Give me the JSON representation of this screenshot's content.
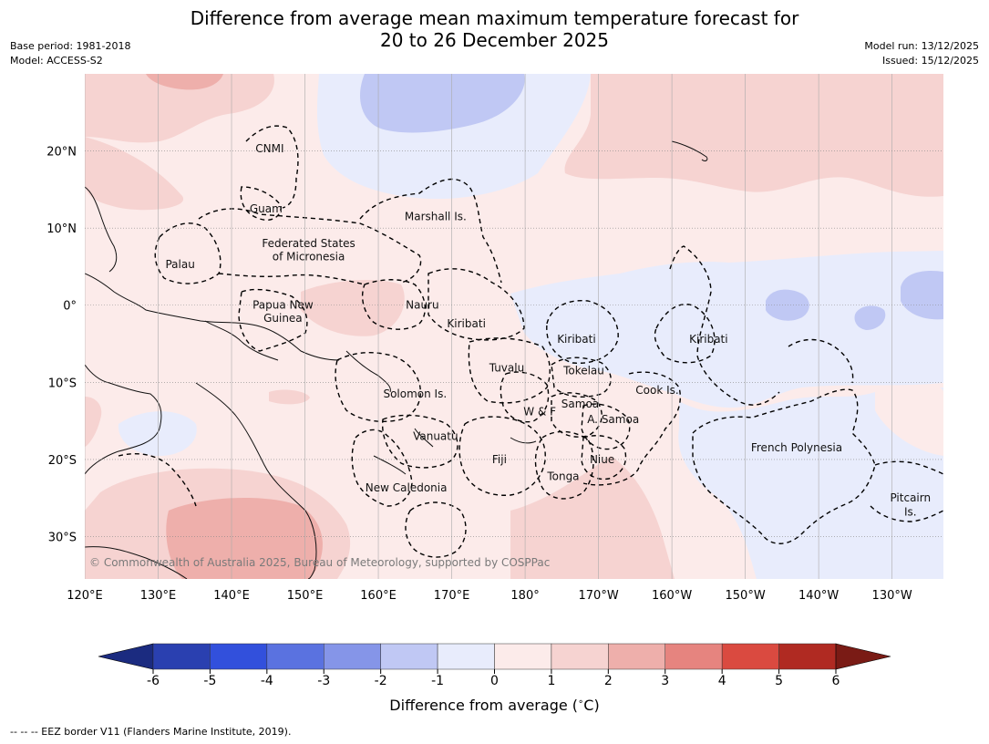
{
  "title": {
    "line1": "Difference from average mean maximum temperature forecast for",
    "line2": "20 to 26 December 2025"
  },
  "meta_left": {
    "base_period": "Base period: 1981-2018",
    "model": "Model: ACCESS-S2"
  },
  "meta_right": {
    "model_run": "Model run: 13/12/2025",
    "issued": "Issued: 15/12/2025"
  },
  "map": {
    "lon_range": [
      120,
      237
    ],
    "lat_range": [
      -35.5,
      30
    ],
    "lon_ticks": [
      {
        "lon": 120,
        "label": "120°E"
      },
      {
        "lon": 130,
        "label": "130°E"
      },
      {
        "lon": 140,
        "label": "140°E"
      },
      {
        "lon": 150,
        "label": "150°E"
      },
      {
        "lon": 160,
        "label": "160°E"
      },
      {
        "lon": 170,
        "label": "170°E"
      },
      {
        "lon": 180,
        "label": "180°"
      },
      {
        "lon": 190,
        "label": "170°W"
      },
      {
        "lon": 200,
        "label": "160°W"
      },
      {
        "lon": 210,
        "label": "150°W"
      },
      {
        "lon": 220,
        "label": "140°W"
      },
      {
        "lon": 230,
        "label": "130°W"
      }
    ],
    "lat_ticks": [
      {
        "lat": 20,
        "label": "20°N"
      },
      {
        "lat": 10,
        "label": "10°N"
      },
      {
        "lat": 0,
        "label": "0°"
      },
      {
        "lat": -10,
        "label": "10°S"
      },
      {
        "lat": -20,
        "label": "20°S"
      },
      {
        "lat": -30,
        "label": "30°S"
      }
    ],
    "region_labels": [
      {
        "text": "CNMI",
        "lon": 145.2,
        "lat": 20.3
      },
      {
        "text": "Guam",
        "lon": 144.7,
        "lat": 12.5
      },
      {
        "text": "Marshall Is.",
        "lon": 167.8,
        "lat": 11.5
      },
      {
        "text": "Federated States",
        "lon": 150.5,
        "lat": 8.0
      },
      {
        "text": "of Micronesia",
        "lon": 150.5,
        "lat": 6.3
      },
      {
        "text": "Palau",
        "lon": 133.0,
        "lat": 5.3
      },
      {
        "text": "Papua New",
        "lon": 147.0,
        "lat": 0.0
      },
      {
        "text": "Guinea",
        "lon": 147.0,
        "lat": -1.7
      },
      {
        "text": "Nauru",
        "lon": 166.0,
        "lat": 0.0
      },
      {
        "text": "Kiribati",
        "lon": 172.0,
        "lat": -2.4
      },
      {
        "text": "Kiribati",
        "lon": 187.0,
        "lat": -4.4
      },
      {
        "text": "Kiribati",
        "lon": 205.0,
        "lat": -4.4
      },
      {
        "text": "Tuvalu",
        "lon": 177.5,
        "lat": -8.1
      },
      {
        "text": "Tokelau",
        "lon": 188.0,
        "lat": -8.5
      },
      {
        "text": "Cook Is.",
        "lon": 198.0,
        "lat": -11.0
      },
      {
        "text": "Solomon Is.",
        "lon": 165.0,
        "lat": -11.5
      },
      {
        "text": "Samoa",
        "lon": 187.5,
        "lat": -12.8
      },
      {
        "text": "W & F",
        "lon": 182.0,
        "lat": -13.8
      },
      {
        "text": "A. Samoa",
        "lon": 192.0,
        "lat": -14.8
      },
      {
        "text": "Vanuatu",
        "lon": 167.8,
        "lat": -17.0
      },
      {
        "text": "Fiji",
        "lon": 176.5,
        "lat": -20.0
      },
      {
        "text": "Niue",
        "lon": 190.5,
        "lat": -20.0
      },
      {
        "text": "French Polynesia",
        "lon": 217.0,
        "lat": -18.5
      },
      {
        "text": "Tonga",
        "lon": 185.2,
        "lat": -22.2
      },
      {
        "text": "New Caledonia",
        "lon": 163.8,
        "lat": -23.7
      },
      {
        "text": "Pitcairn",
        "lon": 232.5,
        "lat": -25.0
      },
      {
        "text": "Is.",
        "lon": 232.5,
        "lat": -26.8
      }
    ],
    "copyright": "© Commonwealth of Australia 2025, Bureau of Meteorology, supported by COSPPac"
  },
  "colorbar": {
    "ticks": [
      "-6",
      "-5",
      "-4",
      "-3",
      "-2",
      "-1",
      "0",
      "1",
      "2",
      "3",
      "4",
      "5",
      "6"
    ],
    "under_color": "#1b2b80",
    "over_color": "#7a1b15",
    "colors": [
      "#2a40b0",
      "#3250dc",
      "#5a72e0",
      "#8595e8",
      "#c0c8f4",
      "#e8ecfc",
      "#fcebea",
      "#f6d3d1",
      "#eeafab",
      "#e6847f",
      "#da4a40",
      "#b02a22"
    ],
    "label": "Difference from average ($^\\circ$C)"
  },
  "footnote": "-- -- -- EEZ border V11 (Flanders Marine Institute, 2019)."
}
